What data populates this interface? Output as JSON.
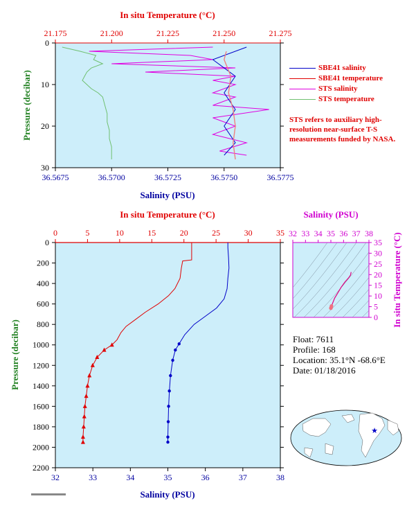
{
  "top_chart": {
    "title_top": "In situ Temperature (°C)",
    "title_bottom": "Salinity (PSU)",
    "ylabel": "Pressure (decibar)",
    "temp_ticks": [
      "21.175",
      "21.200",
      "21.225",
      "21.250",
      "21.275"
    ],
    "sal_ticks": [
      "36.5675",
      "36.5700",
      "36.5725",
      "36.5750",
      "36.5775"
    ],
    "p_ticks": [
      "0",
      "10",
      "20",
      "30"
    ]
  },
  "legend": {
    "items": [
      {
        "label": "SBE41 salinity",
        "color": "#0000c8"
      },
      {
        "label": "SBE41 temperature",
        "color": "#e00000"
      },
      {
        "label": "STS salinity",
        "color": "#e000e0"
      },
      {
        "label": "STS temperature",
        "color": "#70c070"
      }
    ]
  },
  "note": "STS refers to auxiliary high-resolution near-surface T-S measurements funded by NASA.",
  "main_chart": {
    "title_top": "In situ Temperature (°C)",
    "title_bottom": "Salinity (PSU)",
    "ylabel": "Pressure (decibar)",
    "temp_ticks": [
      "0",
      "5",
      "10",
      "15",
      "20",
      "25",
      "30",
      "35"
    ],
    "sal_ticks": [
      "32",
      "33",
      "34",
      "35",
      "36",
      "37",
      "38"
    ],
    "p_ticks": [
      "0",
      "200",
      "400",
      "600",
      "800",
      "1000",
      "1200",
      "1400",
      "1600",
      "1800",
      "2000",
      "2200"
    ]
  },
  "ts_chart": {
    "title": "Salinity (PSU)",
    "ylabel": "In situ Temperature (°C)",
    "sal_ticks": [
      "32",
      "33",
      "34",
      "35",
      "36",
      "37",
      "38"
    ],
    "temp_ticks": [
      "0",
      "5",
      "10",
      "15",
      "20",
      "25",
      "30",
      "35"
    ]
  },
  "float_info": {
    "float": "Float:  7611",
    "profile": "Profile:  168",
    "location": "Location:  35.1°N  -68.6°E",
    "date": "Date:  01/18/2016"
  },
  "colors": {
    "plot_bg": "#cdeefa",
    "salinity": "#0000c8",
    "temperature": "#e00000",
    "sts_sal": "#e000e0",
    "sts_temp": "#70c070",
    "axis_sal": "#0000a0",
    "axis_temp": "#e00000",
    "ts_axis": "#d000d0"
  },
  "chart_data": [
    {
      "type": "line",
      "title": "",
      "xlabel": "Salinity (PSU)",
      "x2label": "In situ Temperature (°C)",
      "ylabel": "Pressure (decibar)",
      "xlim": [
        36.5675,
        36.5775
      ],
      "x2lim": [
        21.175,
        21.275
      ],
      "ylim": [
        30,
        0
      ],
      "series": [
        {
          "name": "STS temperature",
          "axis": "temp",
          "points": [
            [
              21.178,
              1
            ],
            [
              21.186,
              2
            ],
            [
              21.193,
              3
            ],
            [
              21.192,
              4
            ],
            [
              21.196,
              5
            ],
            [
              21.191,
              6
            ],
            [
              21.189,
              7
            ],
            [
              21.188,
              8
            ],
            [
              21.187,
              9
            ],
            [
              21.189,
              10
            ],
            [
              21.191,
              11
            ],
            [
              21.194,
              12
            ],
            [
              21.196,
              13
            ],
            [
              21.197,
              15
            ],
            [
              21.198,
              17
            ],
            [
              21.198,
              19
            ],
            [
              21.199,
              21
            ],
            [
              21.199,
              23
            ],
            [
              21.2,
              25
            ],
            [
              21.2,
              27
            ],
            [
              21.2,
              28
            ]
          ]
        },
        {
          "name": "STS salinity",
          "axis": "sal",
          "points": [
            [
              36.5745,
              1
            ],
            [
              36.569,
              2
            ],
            [
              36.5735,
              3
            ],
            [
              36.5745,
              4
            ],
            [
              36.57,
              5
            ],
            [
              36.5755,
              6
            ],
            [
              36.5715,
              7
            ],
            [
              36.5755,
              8
            ],
            [
              36.5745,
              9
            ],
            [
              36.5755,
              10
            ],
            [
              36.5745,
              12
            ],
            [
              36.5755,
              13
            ],
            [
              36.5745,
              15
            ],
            [
              36.577,
              16
            ],
            [
              36.5745,
              18
            ],
            [
              36.5755,
              20
            ],
            [
              36.5745,
              22
            ],
            [
              36.576,
              24
            ],
            [
              36.5748,
              26
            ],
            [
              36.576,
              27
            ]
          ]
        },
        {
          "name": "SBE41 salinity",
          "axis": "sal",
          "points": [
            [
              36.576,
              1
            ],
            [
              36.5745,
              4
            ],
            [
              36.5755,
              8
            ],
            [
              36.575,
              12
            ],
            [
              36.5755,
              16
            ],
            [
              36.575,
              20
            ],
            [
              36.5755,
              24
            ],
            [
              36.575,
              27
            ]
          ]
        },
        {
          "name": "SBE41 temperature",
          "axis": "temp",
          "points": [
            [
              21.251,
              2
            ],
            [
              21.25,
              4
            ],
            [
              21.253,
              8
            ],
            [
              21.252,
              12
            ],
            [
              21.254,
              16
            ],
            [
              21.255,
              20
            ],
            [
              21.254,
              24
            ],
            [
              21.255,
              28
            ]
          ]
        }
      ]
    },
    {
      "type": "line",
      "title": "",
      "xlabel": "Salinity (PSU)",
      "x2label": "In situ Temperature (°C)",
      "ylabel": "Pressure (decibar)",
      "xlim": [
        32,
        38
      ],
      "x2lim": [
        0,
        35
      ],
      "ylim": [
        2200,
        0
      ],
      "series": [
        {
          "name": "Salinity",
          "axis": "sal",
          "points": [
            [
              36.6,
              0
            ],
            [
              36.6,
              50
            ],
            [
              36.62,
              150
            ],
            [
              36.63,
              250
            ],
            [
              36.6,
              350
            ],
            [
              36.58,
              450
            ],
            [
              36.5,
              550
            ],
            [
              36.3,
              640
            ],
            [
              36.0,
              720
            ],
            [
              35.7,
              800
            ],
            [
              35.45,
              900
            ],
            [
              35.3,
              990
            ],
            [
              35.2,
              1050
            ],
            [
              35.13,
              1150
            ],
            [
              35.07,
              1300
            ],
            [
              35.04,
              1450
            ],
            [
              35.02,
              1600
            ],
            [
              35.01,
              1750
            ],
            [
              35.0,
              1900
            ],
            [
              35.0,
              1950
            ]
          ]
        },
        {
          "name": "Temperature",
          "axis": "temp",
          "points": [
            [
              21.2,
              0
            ],
            [
              21.2,
              170
            ],
            [
              19.8,
              180
            ],
            [
              19.6,
              250
            ],
            [
              19.4,
              350
            ],
            [
              18.6,
              450
            ],
            [
              17.6,
              520
            ],
            [
              16.0,
              600
            ],
            [
              14.0,
              680
            ],
            [
              12.5,
              750
            ],
            [
              11.0,
              820
            ],
            [
              10.2,
              880
            ],
            [
              9.6,
              950
            ],
            [
              8.8,
              1000
            ],
            [
              7.6,
              1050
            ],
            [
              6.5,
              1120
            ],
            [
              5.8,
              1200
            ],
            [
              5.3,
              1300
            ],
            [
              5.0,
              1400
            ],
            [
              4.8,
              1500
            ],
            [
              4.6,
              1600
            ],
            [
              4.5,
              1700
            ],
            [
              4.4,
              1800
            ],
            [
              4.3,
              1900
            ],
            [
              4.3,
              1950
            ]
          ]
        }
      ]
    },
    {
      "type": "scatter",
      "title": "",
      "xlabel": "Salinity (PSU)",
      "ylabel": "In situ Temperature (°C)",
      "xlim": [
        32,
        38
      ],
      "ylim": [
        0,
        35
      ],
      "series": [
        {
          "name": "T-S",
          "points": [
            [
              35.0,
              4.3
            ],
            [
              35.02,
              4.6
            ],
            [
              35.05,
              5.3
            ],
            [
              35.13,
              6.5
            ],
            [
              35.3,
              9.0
            ],
            [
              35.5,
              11.0
            ],
            [
              35.8,
              14.0
            ],
            [
              36.1,
              16.5
            ],
            [
              36.4,
              18.5
            ],
            [
              36.55,
              19.8
            ],
            [
              36.6,
              21.2
            ]
          ]
        }
      ]
    }
  ]
}
